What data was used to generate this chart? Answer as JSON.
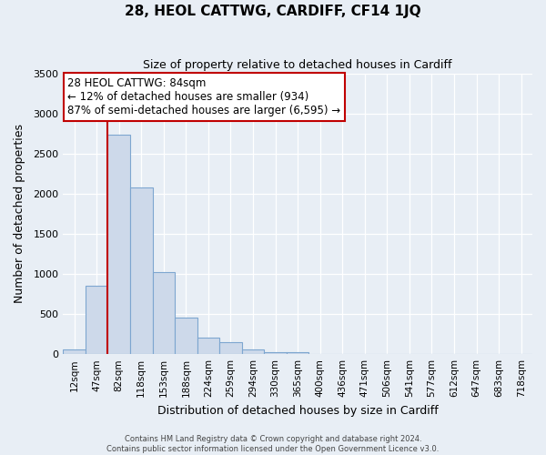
{
  "title": "28, HEOL CATTWG, CARDIFF, CF14 1JQ",
  "subtitle": "Size of property relative to detached houses in Cardiff",
  "xlabel": "Distribution of detached houses by size in Cardiff",
  "ylabel": "Number of detached properties",
  "bin_labels": [
    "12sqm",
    "47sqm",
    "82sqm",
    "118sqm",
    "153sqm",
    "188sqm",
    "224sqm",
    "259sqm",
    "294sqm",
    "330sqm",
    "365sqm",
    "400sqm",
    "436sqm",
    "471sqm",
    "506sqm",
    "541sqm",
    "577sqm",
    "612sqm",
    "647sqm",
    "683sqm",
    "718sqm"
  ],
  "bar_values": [
    55,
    855,
    2730,
    2075,
    1020,
    455,
    210,
    145,
    55,
    30,
    20,
    5,
    5,
    0,
    0,
    0,
    0,
    0,
    0,
    0,
    0
  ],
  "bar_color": "#cdd9ea",
  "bar_edge_color": "#7da6d0",
  "property_line_color": "#c00000",
  "annotation_text": "28 HEOL CATTWG: 84sqm\n← 12% of detached houses are smaller (934)\n87% of semi-detached houses are larger (6,595) →",
  "annotation_box_color": "#ffffff",
  "annotation_box_edge_color": "#c00000",
  "ylim": [
    0,
    3500
  ],
  "yticks": [
    0,
    500,
    1000,
    1500,
    2000,
    2500,
    3000,
    3500
  ],
  "footer_line1": "Contains HM Land Registry data © Crown copyright and database right 2024.",
  "footer_line2": "Contains public sector information licensed under the Open Government Licence v3.0.",
  "bg_color": "#e8eef5",
  "plot_bg_color": "#e8eef5",
  "grid_color": "#ffffff"
}
